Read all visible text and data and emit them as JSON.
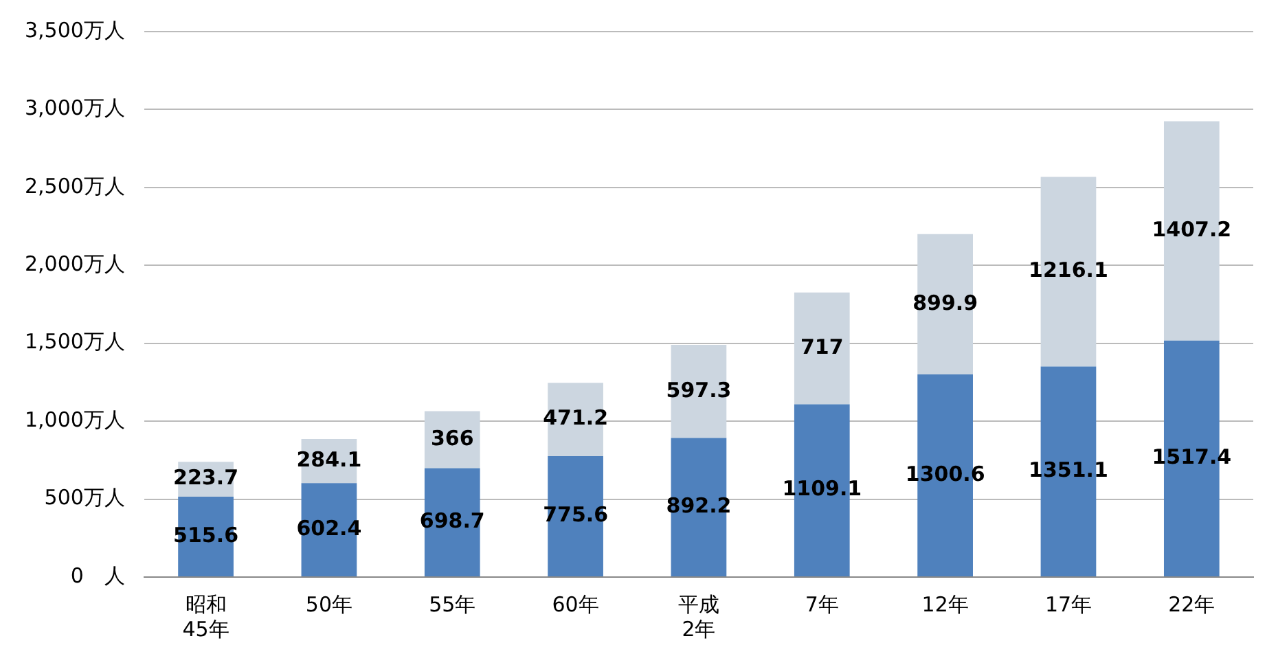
{
  "chart_data": {
    "type": "bar",
    "stacked": true,
    "categories": [
      "昭和\n45年",
      "50年",
      "55年",
      "60年",
      "平成\n2年",
      "7年",
      "12年",
      "17年",
      "22年"
    ],
    "series": [
      {
        "color": "#4f81bd",
        "values": [
          515.6,
          602.4,
          698.7,
          775.6,
          892.2,
          1109.1,
          1300.6,
          1351.1,
          1517.4
        ]
      },
      {
        "color": "#ccd6e0",
        "values": [
          223.7,
          284.1,
          366,
          471.2,
          597.3,
          717,
          899.9,
          1216.1,
          1407.2
        ]
      }
    ],
    "ylim": [
      0,
      3500
    ],
    "yticks": [
      {
        "value": 0,
        "label": "0　人"
      },
      {
        "value": 500,
        "label": "500万人"
      },
      {
        "value": 1000,
        "label": "1,000万人"
      },
      {
        "value": 1500,
        "label": "1,500万人"
      },
      {
        "value": 2000,
        "label": "2,000万人"
      },
      {
        "value": 2500,
        "label": "2,500万人"
      },
      {
        "value": 3000,
        "label": "3,000万人"
      },
      {
        "value": 3500,
        "label": "3,500万人"
      }
    ],
    "grid": "y",
    "data_labels": true,
    "legend": false
  }
}
